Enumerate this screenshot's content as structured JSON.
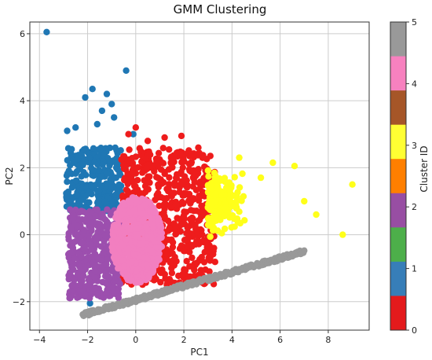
{
  "chart_data": {
    "type": "scatter",
    "title": "GMM Clustering",
    "xlabel": "PC1",
    "ylabel": "PC2",
    "xlim": [
      -4.4,
      9.7
    ],
    "ylim": [
      -2.85,
      6.35
    ],
    "xticks": [
      -4,
      -2,
      0,
      2,
      4,
      6,
      8
    ],
    "yticks": [
      -2,
      0,
      2,
      4,
      6
    ],
    "grid": true,
    "legend": "none",
    "colorbar": {
      "label": "Cluster ID",
      "range": [
        0,
        5
      ],
      "ticks": [
        0,
        1,
        2,
        3,
        4,
        5
      ],
      "colors": [
        "#e41a1c",
        "#377eb8",
        "#4daf4a",
        "#984ea3",
        "#ff7f00",
        "#ffff33",
        "#a65628",
        "#f781bf",
        "#999999"
      ]
    },
    "cluster_colors": {
      "red": "#ee1c1c",
      "blue": "#1f77b4",
      "purple": "#9c4fae",
      "yellow": "#ffff1a",
      "pink": "#f27fc0",
      "gray": "#999999"
    },
    "series": [
      {
        "cluster": "blue",
        "outliers": [
          [
            -3.7,
            6.05
          ],
          [
            -0.4,
            4.9
          ],
          [
            -1.8,
            4.35
          ],
          [
            -1.2,
            4.2
          ],
          [
            -2.1,
            4.1
          ],
          [
            -1.0,
            3.9
          ],
          [
            -1.4,
            3.7
          ],
          [
            -2.5,
            3.2
          ],
          [
            -0.9,
            3.5
          ],
          [
            -2.85,
            3.1
          ],
          [
            -1.6,
            3.3
          ],
          [
            -0.1,
            3.0
          ]
        ],
        "bounds": {
          "x": [
            -2.9,
            -0.6
          ],
          "y": [
            0.7,
            2.6
          ]
        },
        "count": 300
      },
      {
        "cluster": "red",
        "outliers": [
          [
            0.0,
            3.2
          ],
          [
            -0.3,
            3.0
          ],
          [
            1.2,
            2.9
          ],
          [
            1.9,
            2.95
          ],
          [
            2.6,
            2.6
          ],
          [
            3.1,
            2.35
          ],
          [
            0.5,
            2.8
          ]
        ],
        "bounds": {
          "x": [
            -0.6,
            3.3
          ],
          "y": [
            -1.5,
            2.6
          ]
        },
        "count": 650
      },
      {
        "cluster": "yellow",
        "outliers": [
          [
            5.7,
            2.15
          ],
          [
            6.6,
            2.05
          ],
          [
            9.0,
            1.5
          ],
          [
            7.0,
            1.0
          ],
          [
            8.6,
            0.0
          ],
          [
            7.5,
            0.6
          ],
          [
            5.2,
            1.7
          ],
          [
            4.3,
            2.3
          ]
        ],
        "bounds": {
          "x": [
            3.0,
            6.0
          ],
          "y": [
            -0.8,
            2.1
          ]
        },
        "count": 180
      },
      {
        "cluster": "purple",
        "bounds": {
          "x": [
            -2.8,
            -0.6
          ],
          "y": [
            -1.9,
            0.75
          ]
        },
        "count": 420
      },
      {
        "cluster": "pink",
        "center": [
          0.05,
          -0.15
        ],
        "radius": [
          1.05,
          1.3
        ],
        "count": 550
      },
      {
        "cluster": "gray",
        "line": {
          "from": [
            -2.2,
            -2.4
          ],
          "to": [
            7.0,
            -0.5
          ]
        },
        "count": 260
      }
    ]
  }
}
